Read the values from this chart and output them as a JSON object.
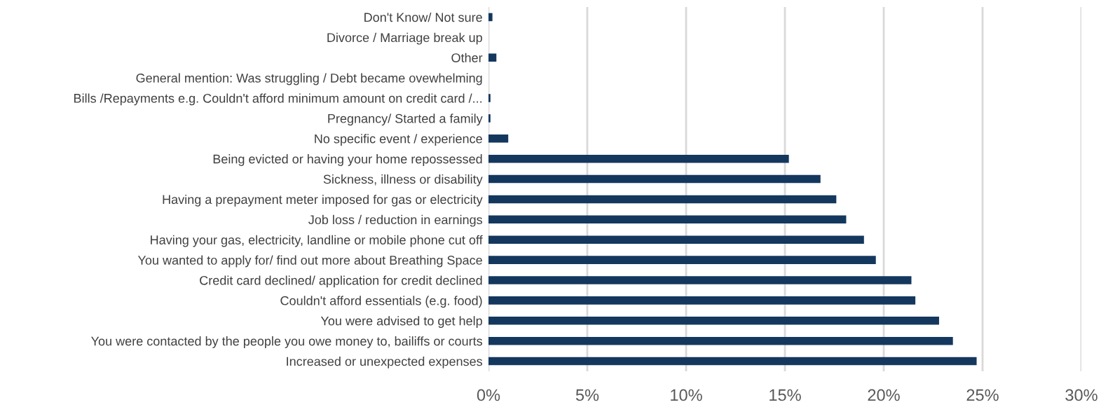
{
  "chart_data": {
    "type": "bar",
    "orientation": "horizontal",
    "categories": [
      "Don't Know/ Not sure",
      "Divorce / Marriage break up",
      "Other",
      "General mention: Was struggling / Debt became ovewhelming",
      "Bills /Repayments e.g. Couldn't afford minimum amount on credit card /...",
      "Pregnancy/ Started a family",
      "No specific event / experience",
      "Being evicted or having your home repossessed",
      "Sickness, illness or disability",
      "Having a prepayment meter imposed for gas or electricity",
      "Job loss / reduction in earnings",
      "Having your gas, electricity, landline or mobile phone cut off",
      "You wanted to apply for/ find out more about Breathing Space",
      "Credit card declined/ application for credit declined",
      "Couldn't afford essentials (e.g. food)",
      "You were advised to get help",
      "You were contacted by the people you owe money to, bailiffs or courts",
      "Increased or unexpected expenses"
    ],
    "values": [
      0.2,
      0,
      0.4,
      0,
      0.1,
      0.1,
      1.0,
      15.2,
      16.8,
      17.6,
      18.1,
      19.0,
      19.6,
      21.4,
      21.6,
      22.8,
      23.5,
      24.7
    ],
    "color": "#14375e",
    "xlim": [
      0,
      30
    ],
    "xticks": [
      {
        "value": 0,
        "label": "0%"
      },
      {
        "value": 5,
        "label": "5%"
      },
      {
        "value": 10,
        "label": "10%"
      },
      {
        "value": 15,
        "label": "15%"
      },
      {
        "value": 20,
        "label": "20%"
      },
      {
        "value": 25,
        "label": "25%"
      },
      {
        "value": 30,
        "label": "30%"
      }
    ],
    "grid": "x"
  }
}
